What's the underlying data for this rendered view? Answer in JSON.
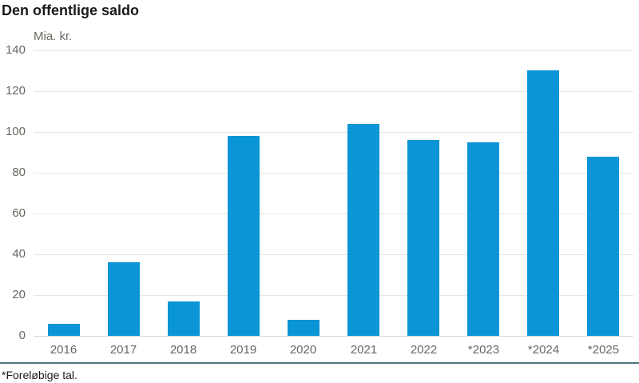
{
  "title": "Den offentlige saldo",
  "unit_label": "Mia. kr.",
  "footnote": "*Foreløbige tal.",
  "colors": {
    "bar": "#0a95d6",
    "gridline": "#e6e6df",
    "axisline": "#d5d5cf",
    "muted_text": "#696660",
    "title_text": "#1a1a1a",
    "separator": "#57747f"
  },
  "chart_data": {
    "type": "bar",
    "title": "Den offentlige saldo",
    "categories": [
      "2016",
      "2017",
      "2018",
      "2019",
      "2020",
      "2021",
      "2022",
      "*2023",
      "*2024",
      "*2025"
    ],
    "values": [
      6,
      36,
      17,
      98,
      8,
      104,
      96,
      95,
      130,
      88
    ],
    "xlabel": "",
    "ylabel": "Mia. kr.",
    "ylim": [
      0,
      140
    ],
    "yticks": [
      0,
      20,
      40,
      60,
      80,
      100,
      120,
      140
    ],
    "grid": true,
    "legend": false,
    "footnote": "*Foreløbige tal.",
    "bar_color": "#0a95d6"
  }
}
